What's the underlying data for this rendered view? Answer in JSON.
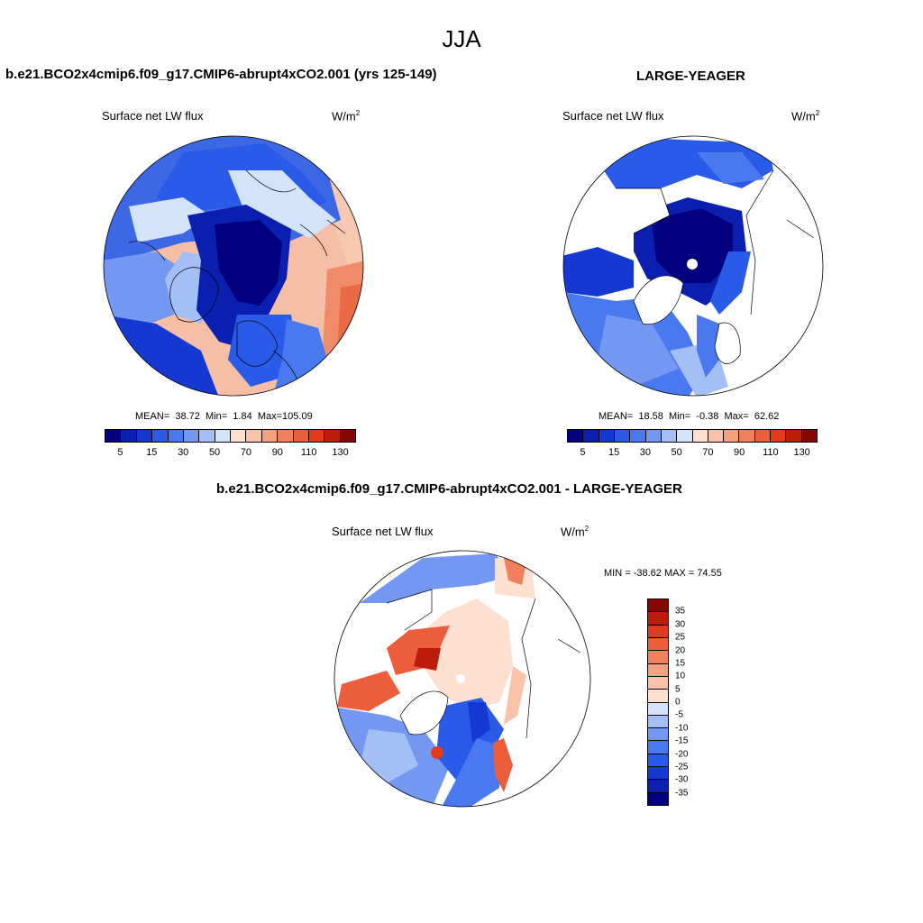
{
  "figure": {
    "season": "JJA",
    "panel_left_title": "b.e21.BCO2x4cmip6.f09_g17.CMIP6-abrupt4xCO2.001 (yrs 125-149)",
    "panel_right_title": "LARGE-YEAGER",
    "diff_title": "b.e21.BCO2x4cmip6.f09_g17.CMIP6-abrupt4xCO2.001 - LARGE-YEAGER",
    "variable": "Surface net LW flux",
    "units_base": "W/m",
    "units_exp": "2"
  },
  "panels": [
    {
      "id": "model",
      "mean_label": "MEAN=",
      "mean": "38.72",
      "min_label": "Min=",
      "min": "1.84",
      "max_label": "Max=",
      "max": "105.09"
    },
    {
      "id": "obs",
      "mean_label": "MEAN=",
      "mean": "18.58",
      "min_label": "Min=",
      "min": "-0.38",
      "max_label": "Max=",
      "max": "62.62"
    }
  ],
  "diff_stats": {
    "text": "MIN = -38.62 MAX =  74.55"
  },
  "colorbar_abs": {
    "ticks": [
      "5",
      "15",
      "30",
      "50",
      "70",
      "90",
      "110",
      "130"
    ],
    "colors": [
      "#02007f",
      "#0a1fb0",
      "#1538d3",
      "#2a5ae8",
      "#4a78ef",
      "#7498f2",
      "#a3bff5",
      "#d3e4fa",
      "#fde0d0",
      "#fac2a8",
      "#f5a283",
      "#f18060",
      "#ec5e3b",
      "#e23a1b",
      "#bc1c0b",
      "#850800"
    ]
  },
  "colorbar_diff": {
    "ticks": [
      "35",
      "30",
      "25",
      "20",
      "15",
      "10",
      "5",
      "0",
      "-5",
      "-10",
      "-15",
      "-20",
      "-25",
      "-30",
      "-35"
    ],
    "colors": [
      "#850800",
      "#bc1c0b",
      "#e23a1b",
      "#ec5e3b",
      "#f18060",
      "#f5a283",
      "#fac2a8",
      "#fde0d0",
      "#d3e4fa",
      "#a3bff5",
      "#7498f2",
      "#4a78ef",
      "#2a5ae8",
      "#1538d3",
      "#0a1fb0",
      "#02007f"
    ]
  }
}
